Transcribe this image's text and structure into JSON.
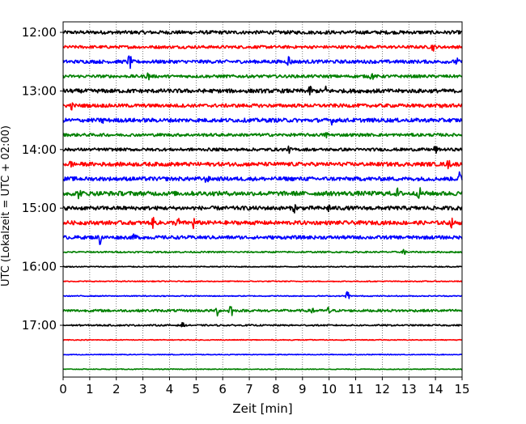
{
  "chart_data": {
    "type": "line",
    "title": "",
    "xlabel": "Zeit  [min]",
    "ylabel": "UTC (Lokalzeit = UTC + 02:00)",
    "xlim": [
      0,
      15
    ],
    "x_ticks": [
      "0",
      "1",
      "2",
      "3",
      "4",
      "5",
      "6",
      "7",
      "8",
      "9",
      "10",
      "11",
      "12",
      "13",
      "14",
      "15"
    ],
    "y_ticks": [
      "12:00",
      "13:00",
      "14:00",
      "15:00",
      "16:00",
      "17:00"
    ],
    "grid": "vertical-dotted",
    "line_colors": [
      "#000000",
      "#ff0000",
      "#0000ff",
      "#008000"
    ],
    "series": [
      {
        "time": "12:00",
        "color": "#000000",
        "amplitude": 0.35,
        "events": []
      },
      {
        "time": "12:15",
        "color": "#ff0000",
        "amplitude": 0.3,
        "events": [
          [
            13.9,
            0.7
          ]
        ]
      },
      {
        "time": "12:30",
        "color": "#0000ff",
        "amplitude": 0.35,
        "events": [
          [
            2.5,
            1.6
          ],
          [
            8.5,
            1.4
          ],
          [
            14.8,
            0.6
          ]
        ]
      },
      {
        "time": "12:45",
        "color": "#008000",
        "amplitude": 0.3,
        "events": [
          [
            3.2,
            0.8
          ],
          [
            11.6,
            0.8
          ]
        ]
      },
      {
        "time": "13:00",
        "color": "#000000",
        "amplitude": 0.4,
        "events": [
          [
            9.3,
            0.9
          ],
          [
            9.9,
            0.9
          ]
        ]
      },
      {
        "time": "13:15",
        "color": "#ff0000",
        "amplitude": 0.35,
        "events": [
          [
            0.3,
            0.7
          ],
          [
            14.2,
            0.8
          ]
        ]
      },
      {
        "time": "13:30",
        "color": "#0000ff",
        "amplitude": 0.4,
        "events": [
          [
            1.5,
            0.7
          ],
          [
            10.1,
            0.6
          ]
        ]
      },
      {
        "time": "13:45",
        "color": "#008000",
        "amplitude": 0.3,
        "events": [
          [
            9.9,
            0.6
          ]
        ]
      },
      {
        "time": "14:00",
        "color": "#000000",
        "amplitude": 0.3,
        "events": [
          [
            8.5,
            0.5
          ],
          [
            14.0,
            0.8
          ]
        ]
      },
      {
        "time": "14:15",
        "color": "#ff0000",
        "amplitude": 0.4,
        "events": [
          [
            0.3,
            0.6
          ],
          [
            14.5,
            0.8
          ]
        ]
      },
      {
        "time": "14:30",
        "color": "#0000ff",
        "amplitude": 0.4,
        "events": [
          [
            5.4,
            0.8
          ],
          [
            14.9,
            1.2
          ]
        ]
      },
      {
        "time": "14:45",
        "color": "#008000",
        "amplitude": 0.45,
        "events": [
          [
            0.6,
            0.9
          ],
          [
            12.6,
            1.0
          ],
          [
            13.4,
            0.9
          ]
        ]
      },
      {
        "time": "15:00",
        "color": "#000000",
        "amplitude": 0.4,
        "events": [
          [
            8.7,
            0.7
          ],
          [
            10.0,
            0.6
          ]
        ]
      },
      {
        "time": "15:15",
        "color": "#ff0000",
        "amplitude": 0.4,
        "events": [
          [
            3.4,
            1.0
          ],
          [
            4.3,
            1.3
          ],
          [
            4.9,
            1.1
          ],
          [
            14.6,
            0.7
          ]
        ]
      },
      {
        "time": "15:30",
        "color": "#0000ff",
        "amplitude": 0.35,
        "events": [
          [
            1.4,
            1.5
          ],
          [
            2.7,
            0.8
          ]
        ]
      },
      {
        "time": "15:45",
        "color": "#008000",
        "amplitude": 0.15,
        "events": [
          [
            12.8,
            0.8
          ]
        ]
      },
      {
        "time": "16:00",
        "color": "#000000",
        "amplitude": 0.1,
        "events": []
      },
      {
        "time": "16:15",
        "color": "#ff0000",
        "amplitude": 0.1,
        "events": []
      },
      {
        "time": "16:30",
        "color": "#0000ff",
        "amplitude": 0.1,
        "events": [
          [
            10.7,
            1.4
          ]
        ]
      },
      {
        "time": "16:45",
        "color": "#008000",
        "amplitude": 0.25,
        "events": [
          [
            5.8,
            1.0
          ],
          [
            6.3,
            1.9
          ],
          [
            9.4,
            1.0
          ],
          [
            10.0,
            0.9
          ]
        ]
      },
      {
        "time": "17:00",
        "color": "#000000",
        "amplitude": 0.15,
        "events": [
          [
            4.5,
            0.5
          ]
        ]
      },
      {
        "time": "17:15",
        "color": "#ff0000",
        "amplitude": 0.08,
        "events": []
      },
      {
        "time": "17:30",
        "color": "#0000ff",
        "amplitude": 0.08,
        "events": []
      },
      {
        "time": "17:45",
        "color": "#008000",
        "amplitude": 0.08,
        "events": []
      }
    ]
  }
}
